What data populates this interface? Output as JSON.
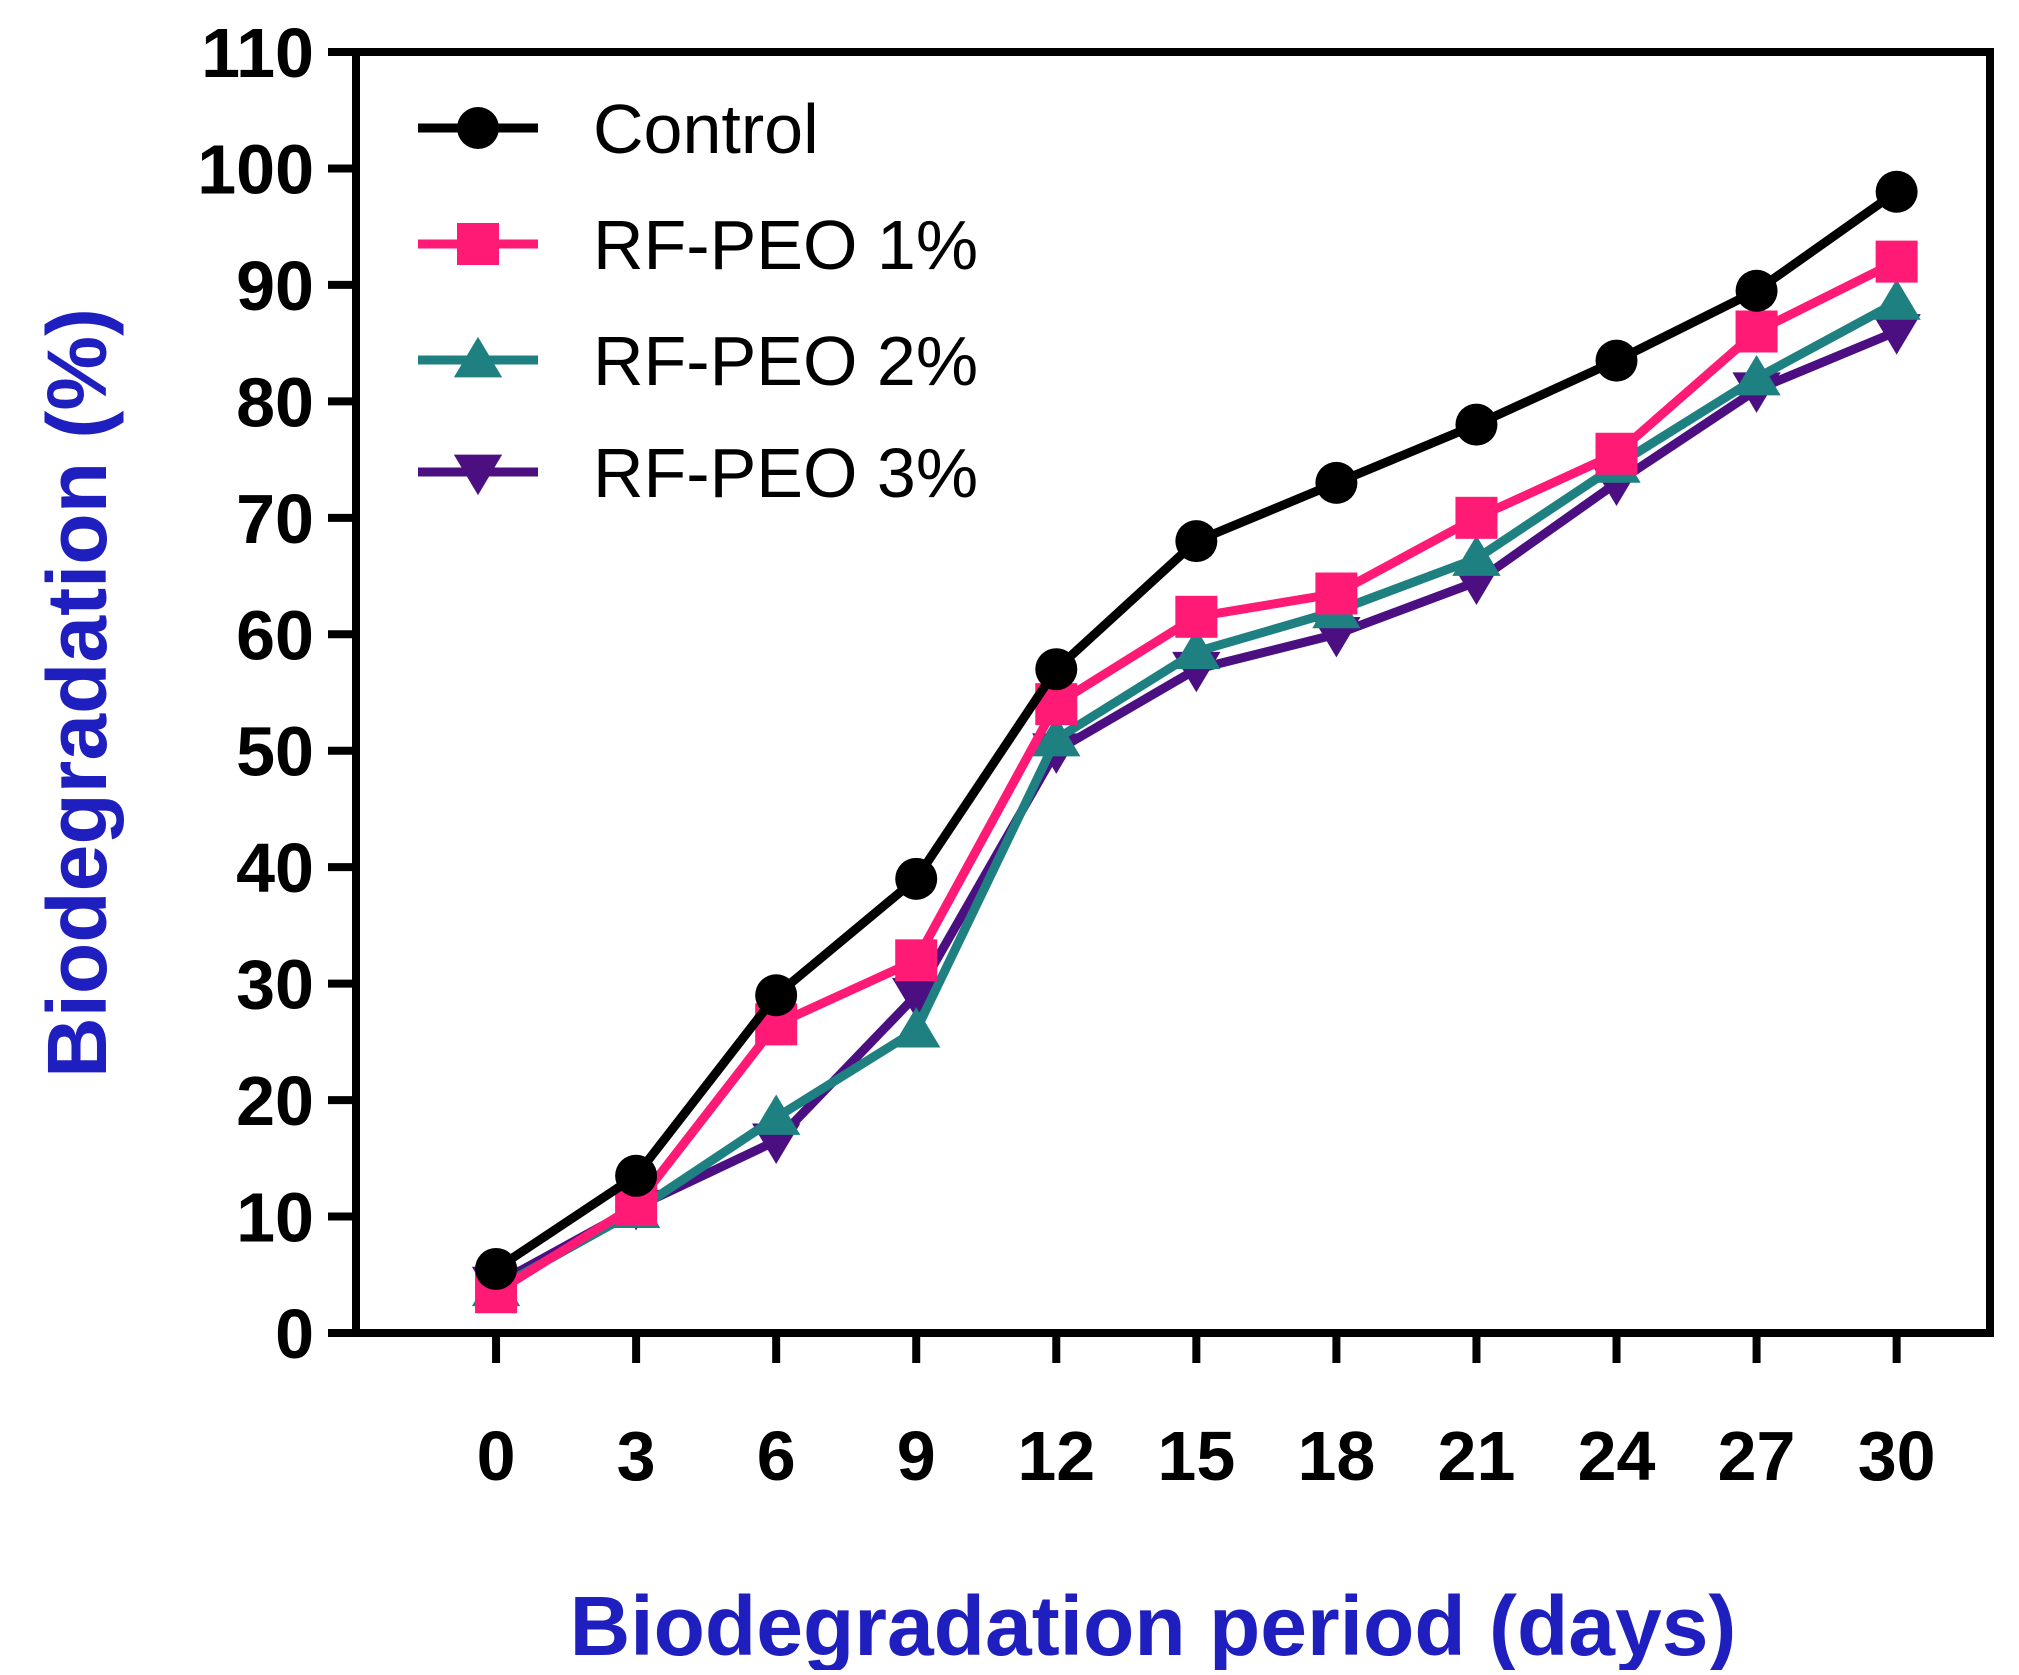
{
  "chart_data": {
    "type": "line",
    "title": "",
    "xlabel": "Biodegradation period (days)",
    "ylabel": "Biodegradation (%)",
    "x": [
      0,
      3,
      6,
      9,
      12,
      15,
      18,
      21,
      24,
      27,
      30
    ],
    "xticks": [
      "0",
      "3",
      "6",
      "9",
      "12",
      "15",
      "18",
      "21",
      "24",
      "27",
      "30"
    ],
    "xlim": [
      -3,
      32
    ],
    "ylim": [
      0,
      110
    ],
    "yticks": [
      0,
      10,
      20,
      30,
      40,
      50,
      60,
      70,
      80,
      90,
      100,
      110
    ],
    "grid": false,
    "legend_position": "top-left",
    "axis_title_color": "#1f1fbf",
    "series": [
      {
        "name": "Control",
        "color": "#000000",
        "marker": "circle",
        "values": [
          5.5,
          13.5,
          29,
          39,
          57,
          68,
          73,
          78,
          83.5,
          89.5,
          98
        ]
      },
      {
        "name": "RF-PEO 1%",
        "color": "#ff1a75",
        "marker": "square",
        "values": [
          3.5,
          11,
          26.5,
          32,
          54,
          61.5,
          63.5,
          70,
          75.5,
          86,
          92
        ]
      },
      {
        "name": "RF-PEO 2%",
        "color": "#1e8080",
        "marker": "triangle-up",
        "values": [
          3.8,
          10.5,
          18.5,
          26,
          51,
          58.5,
          62,
          66.5,
          74.5,
          82,
          88.5
        ]
      },
      {
        "name": "RF-PEO 3%",
        "color": "#4b0f82",
        "marker": "triangle-down",
        "values": [
          4.2,
          10.8,
          16.5,
          29,
          50,
          57,
          60,
          64.5,
          73,
          81,
          86
        ]
      }
    ]
  }
}
